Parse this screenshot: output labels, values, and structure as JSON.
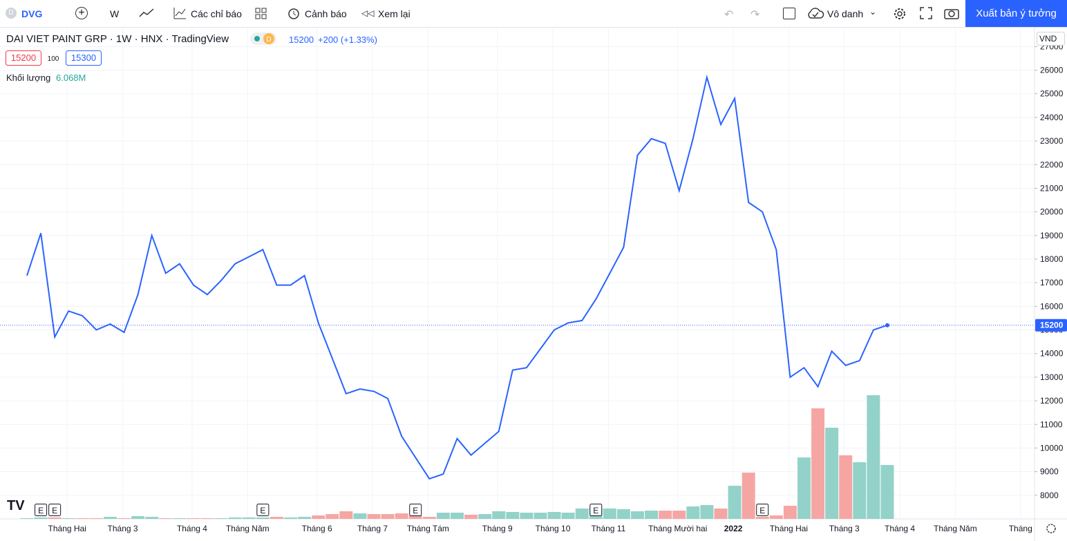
{
  "toolbar": {
    "symbol": "DVG",
    "interval": "W",
    "indicators": "Các chỉ báo",
    "alerts": "Cảnh báo",
    "replay": "Xem lại",
    "layout_name": "Vô danh",
    "publish": "Xuất bản ý tưởng"
  },
  "legend": {
    "title": "DAI VIET PAINT GRP · 1W · HNX · TradingView",
    "status": "D",
    "last": "15200",
    "change": "+200 (+1.33%)",
    "bid": "15200",
    "spread": "100",
    "ask": "15300",
    "volume_name": "Khối lượng",
    "volume_value": "6.068M"
  },
  "chart_data": {
    "type": "line",
    "currency": "VND",
    "price_values": [
      17300,
      19100,
      14700,
      15800,
      15600,
      15000,
      15250,
      14900,
      16500,
      19000,
      17400,
      17800,
      16900,
      16500,
      17100,
      17800,
      18100,
      18400,
      16900,
      16900,
      17300,
      15300,
      13800,
      12300,
      12500,
      12400,
      12100,
      10500,
      9600,
      8700,
      8900,
      10400,
      9700,
      10200,
      10700,
      13300,
      13400,
      14200,
      15000,
      15300,
      15400,
      16300,
      17400,
      18500,
      22400,
      23100,
      22900,
      20900,
      23100,
      25700,
      23700,
      24800,
      20400,
      20000,
      18400,
      13000,
      13400,
      12600,
      14100,
      13500,
      13700,
      15000,
      15200
    ],
    "volume_values": [
      0.08,
      0.16,
      0.16,
      0.08,
      0.08,
      0.08,
      0.23,
      0.08,
      0.31,
      0.23,
      0.08,
      0.08,
      0.08,
      0.08,
      0.08,
      0.16,
      0.16,
      0.16,
      0.23,
      0.16,
      0.23,
      0.39,
      0.54,
      0.86,
      0.62,
      0.54,
      0.54,
      0.62,
      0.39,
      0.23,
      0.7,
      0.7,
      0.47,
      0.54,
      0.86,
      0.78,
      0.7,
      0.7,
      0.78,
      0.7,
      1.17,
      1.24,
      1.17,
      1.09,
      0.86,
      0.93,
      0.93,
      0.93,
      1.4,
      1.56,
      1.17,
      3.73,
      5.21,
      0.23,
      0.39,
      1.48,
      6.92,
      12.45,
      10.27,
      7.16,
      6.38,
      13.93,
      6.068
    ],
    "line_color": "#2962ff",
    "up_color": "#93d2c9",
    "down_color": "#f5a6a3",
    "last_price": 15200,
    "ylim": [
      7000,
      27800
    ],
    "yticks": [
      8000,
      9000,
      10000,
      11000,
      12000,
      13000,
      14000,
      15000,
      16000,
      17000,
      18000,
      19000,
      20000,
      21000,
      22000,
      23000,
      24000,
      25000,
      26000,
      27000
    ],
    "grid": true,
    "xlabels": [
      "Tháng Hai",
      "Tháng 3",
      "Tháng 4",
      "Tháng Năm",
      "Tháng 6",
      "Tháng 7",
      "Tháng Tám",
      "Tháng 9",
      "Tháng 10",
      "Tháng 11",
      "Tháng Mười hai",
      "2022",
      "Tháng Hai",
      "Tháng 3",
      "Tháng 4",
      "Tháng Năm",
      "Tháng"
    ],
    "events": [
      "E",
      "E",
      "E",
      "E",
      "E",
      "E"
    ]
  }
}
